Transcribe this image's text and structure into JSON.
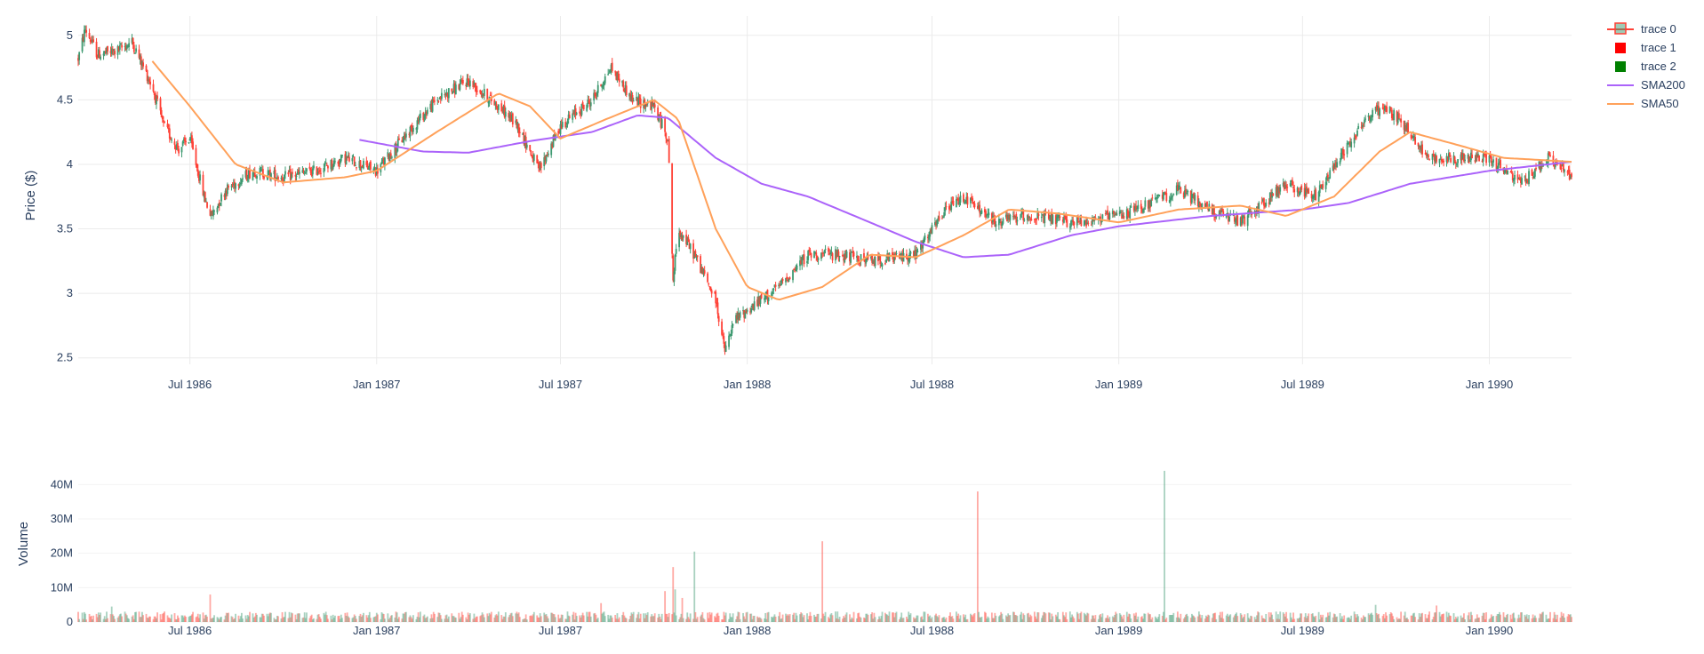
{
  "chart_data": [
    {
      "type": "candlestick",
      "ylabel": "Price ($)",
      "ylim": [
        2.45,
        5.15
      ],
      "yticks": [
        2.5,
        3,
        3.5,
        4,
        4.5,
        5
      ],
      "ytick_labels": [
        "2.5",
        "3",
        "3.5",
        "4",
        "4.5",
        "5"
      ],
      "x_range": [
        "1986-03-13",
        "1990-03-23"
      ],
      "xticks": [
        "1986-07-01",
        "1987-01-01",
        "1987-07-01",
        "1988-01-01",
        "1988-07-01",
        "1989-01-01",
        "1989-07-01",
        "1990-01-01"
      ],
      "xtick_labels": [
        "Jul 1986",
        "Jan 1987",
        "Jul 1987",
        "Jan 1988",
        "Jul 1988",
        "Jan 1989",
        "Jul 1989",
        "Jan 1990"
      ],
      "grid": true,
      "increasing_color": "#3d9970",
      "decreasing_color": "#ff4136",
      "price_anchors": [
        [
          "1986-03-13",
          4.82
        ],
        [
          "1986-03-20",
          5.05
        ],
        [
          "1986-04-01",
          4.85
        ],
        [
          "1986-04-20",
          4.88
        ],
        [
          "1986-05-05",
          4.95
        ],
        [
          "1986-05-25",
          4.6
        ],
        [
          "1986-06-05",
          4.3
        ],
        [
          "1986-06-20",
          4.12
        ],
        [
          "1986-07-01",
          4.2
        ],
        [
          "1986-07-15",
          3.75
        ],
        [
          "1986-07-22",
          3.6
        ],
        [
          "1986-08-05",
          3.8
        ],
        [
          "1986-09-01",
          3.95
        ],
        [
          "1986-10-01",
          3.9
        ],
        [
          "1986-11-01",
          3.95
        ],
        [
          "1986-12-01",
          4.05
        ],
        [
          "1987-01-01",
          3.95
        ],
        [
          "1987-02-01",
          4.25
        ],
        [
          "1987-03-01",
          4.5
        ],
        [
          "1987-04-01",
          4.65
        ],
        [
          "1987-05-01",
          4.45
        ],
        [
          "1987-05-20",
          4.3
        ],
        [
          "1987-06-10",
          3.95
        ],
        [
          "1987-07-01",
          4.3
        ],
        [
          "1987-08-01",
          4.5
        ],
        [
          "1987-08-20",
          4.75
        ],
        [
          "1987-09-10",
          4.5
        ],
        [
          "1987-10-01",
          4.45
        ],
        [
          "1987-10-15",
          4.2
        ],
        [
          "1987-10-20",
          3.1
        ],
        [
          "1987-10-25",
          3.5
        ],
        [
          "1987-11-10",
          3.3
        ],
        [
          "1987-12-01",
          2.95
        ],
        [
          "1987-12-10",
          2.55
        ],
        [
          "1987-12-20",
          2.8
        ],
        [
          "1988-01-15",
          2.95
        ],
        [
          "1988-02-01",
          3.05
        ],
        [
          "1988-03-01",
          3.3
        ],
        [
          "1988-04-01",
          3.3
        ],
        [
          "1988-05-01",
          3.25
        ],
        [
          "1988-06-15",
          3.3
        ],
        [
          "1988-07-15",
          3.65
        ],
        [
          "1988-08-01",
          3.75
        ],
        [
          "1988-09-01",
          3.55
        ],
        [
          "1988-10-01",
          3.6
        ],
        [
          "1988-11-15",
          3.55
        ],
        [
          "1989-01-01",
          3.6
        ],
        [
          "1989-02-01",
          3.7
        ],
        [
          "1989-03-01",
          3.8
        ],
        [
          "1989-04-01",
          3.65
        ],
        [
          "1989-05-01",
          3.55
        ],
        [
          "1989-06-15",
          3.85
        ],
        [
          "1989-07-15",
          3.75
        ],
        [
          "1989-08-01",
          4.0
        ],
        [
          "1989-09-01",
          4.35
        ],
        [
          "1989-09-20",
          4.45
        ],
        [
          "1989-10-10",
          4.3
        ],
        [
          "1989-11-01",
          4.05
        ],
        [
          "1989-12-01",
          4.05
        ],
        [
          "1990-01-01",
          4.05
        ],
        [
          "1990-02-01",
          3.85
        ],
        [
          "1990-03-01",
          4.05
        ],
        [
          "1990-03-23",
          3.9
        ]
      ],
      "sma200_anchors": [
        [
          "1986-12-15",
          4.19
        ],
        [
          "1987-02-15",
          4.1
        ],
        [
          "1987-04-01",
          4.09
        ],
        [
          "1987-06-01",
          4.18
        ],
        [
          "1987-08-01",
          4.25
        ],
        [
          "1987-09-15",
          4.38
        ],
        [
          "1987-10-15",
          4.36
        ],
        [
          "1987-12-01",
          4.05
        ],
        [
          "1988-01-15",
          3.85
        ],
        [
          "1988-03-01",
          3.75
        ],
        [
          "1988-05-01",
          3.55
        ],
        [
          "1988-06-15",
          3.4
        ],
        [
          "1988-08-01",
          3.28
        ],
        [
          "1988-09-15",
          3.3
        ],
        [
          "1988-11-15",
          3.45
        ],
        [
          "1989-01-01",
          3.52
        ],
        [
          "1989-04-01",
          3.6
        ],
        [
          "1989-07-01",
          3.65
        ],
        [
          "1989-08-15",
          3.7
        ],
        [
          "1989-10-15",
          3.85
        ],
        [
          "1990-01-01",
          3.95
        ],
        [
          "1990-03-23",
          4.02
        ]
      ],
      "sma50_anchors": [
        [
          "1986-05-25",
          4.8
        ],
        [
          "1986-07-01",
          4.45
        ],
        [
          "1986-08-15",
          4.0
        ],
        [
          "1986-10-01",
          3.86
        ],
        [
          "1986-12-01",
          3.9
        ],
        [
          "1987-01-01",
          3.95
        ],
        [
          "1987-03-01",
          4.25
        ],
        [
          "1987-05-01",
          4.55
        ],
        [
          "1987-06-01",
          4.45
        ],
        [
          "1987-07-01",
          4.2
        ],
        [
          "1987-08-15",
          4.35
        ],
        [
          "1987-10-01",
          4.5
        ],
        [
          "1987-10-25",
          4.35
        ],
        [
          "1987-12-01",
          3.5
        ],
        [
          "1988-01-01",
          3.05
        ],
        [
          "1988-02-01",
          2.95
        ],
        [
          "1988-03-15",
          3.05
        ],
        [
          "1988-05-01",
          3.3
        ],
        [
          "1988-06-15",
          3.28
        ],
        [
          "1988-08-01",
          3.45
        ],
        [
          "1988-09-15",
          3.65
        ],
        [
          "1988-11-01",
          3.62
        ],
        [
          "1989-01-01",
          3.55
        ],
        [
          "1989-03-01",
          3.65
        ],
        [
          "1989-05-01",
          3.68
        ],
        [
          "1989-06-15",
          3.6
        ],
        [
          "1989-08-01",
          3.75
        ],
        [
          "1989-09-15",
          4.1
        ],
        [
          "1989-10-15",
          4.25
        ],
        [
          "1989-12-01",
          4.15
        ],
        [
          "1990-01-15",
          4.05
        ],
        [
          "1990-03-23",
          4.02
        ]
      ],
      "sma200_color": "#ab63fa",
      "sma50_color": "#ffa15a",
      "legend": {
        "position": "top-right",
        "entries": [
          {
            "label": "trace 0",
            "kind": "candle"
          },
          {
            "label": "trace 1",
            "kind": "square",
            "color": "#ff0000"
          },
          {
            "label": "trace 2",
            "kind": "square",
            "color": "#008000"
          },
          {
            "label": "SMA200",
            "kind": "line",
            "color": "#ab63fa"
          },
          {
            "label": "SMA50",
            "kind": "line",
            "color": "#ffa15a"
          }
        ]
      }
    },
    {
      "type": "bar",
      "ylabel": "Volume",
      "ylim": [
        0,
        45000000
      ],
      "yticks": [
        0,
        10000000,
        20000000,
        30000000,
        40000000
      ],
      "ytick_labels": [
        "0",
        "10M",
        "20M",
        "30M",
        "40M"
      ],
      "grid": false,
      "baseline_volume": 1800000,
      "spikes": [
        [
          "1986-07-20",
          8000000
        ],
        [
          "1987-10-12",
          9000000
        ],
        [
          "1987-10-20",
          16000000
        ],
        [
          "1987-10-22",
          9500000
        ],
        [
          "1987-10-29",
          7000000
        ],
        [
          "1987-11-10",
          20500000
        ],
        [
          "1988-03-15",
          23500000
        ],
        [
          "1988-08-15",
          38000000
        ],
        [
          "1989-02-15",
          44000000
        ],
        [
          "1986-04-15",
          4500000
        ],
        [
          "1987-08-10",
          5500000
        ],
        [
          "1989-09-10",
          5000000
        ],
        [
          "1989-11-10",
          4800000
        ]
      ],
      "increasing_color": "#3d9970",
      "decreasing_color": "#ff4136"
    }
  ]
}
